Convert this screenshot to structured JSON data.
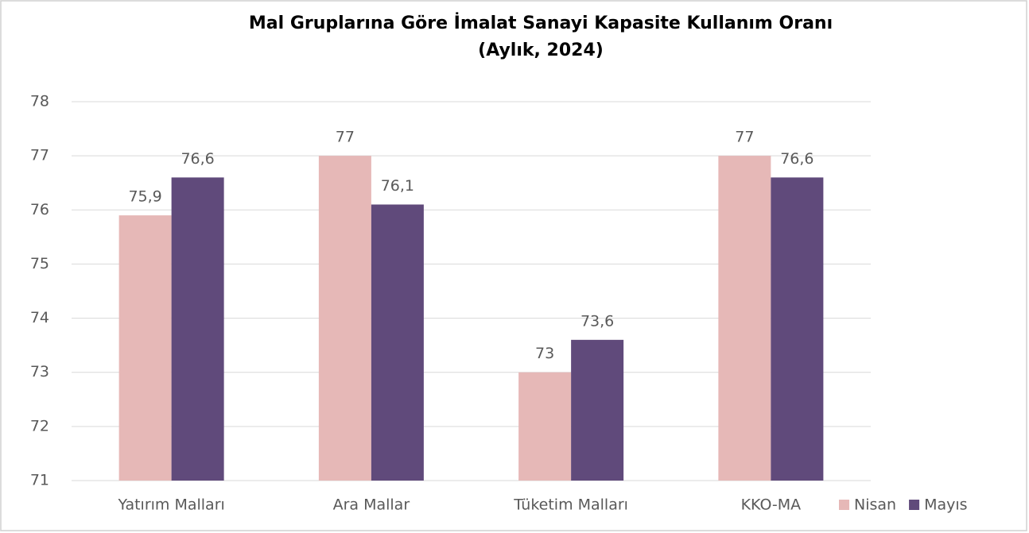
{
  "chart_data": {
    "type": "bar",
    "title": "Mal Gruplarına Göre İmalat Sanayi Kapasite Kullanım Oranı",
    "subtitle": "(Aylık, 2024)",
    "categories": [
      "Yatırım Malları",
      "Ara Mallar",
      "Tüketim Malları",
      "KKO-MA"
    ],
    "series": [
      {
        "name": "Nisan",
        "color": "#e6b8b7",
        "values": [
          75.9,
          77,
          73,
          77
        ],
        "value_labels": [
          "75,9",
          "77",
          "73",
          "77"
        ]
      },
      {
        "name": "Mayıs",
        "color": "#604a7b",
        "values": [
          76.6,
          76.1,
          73.6,
          76.6
        ],
        "value_labels": [
          "76,6",
          "76,1",
          "73,6",
          "76,6"
        ]
      }
    ],
    "ylim": [
      71,
      78
    ],
    "yticks": [
      71,
      72,
      73,
      74,
      75,
      76,
      77,
      78
    ],
    "grid": true,
    "legend": "bottom-right"
  }
}
